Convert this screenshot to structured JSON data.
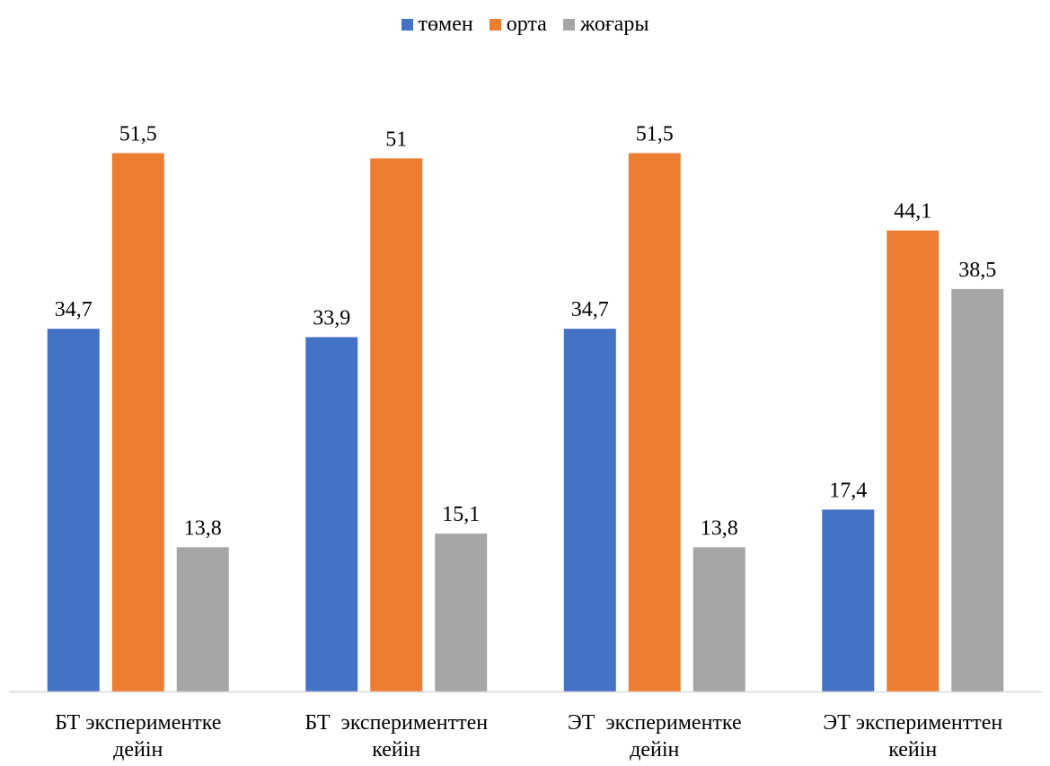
{
  "chart_data": {
    "type": "bar",
    "title": "",
    "xlabel": "",
    "ylabel": "",
    "ylim": [
      0,
      60
    ],
    "grid": false,
    "legend_position": "top",
    "categories": [
      [
        "БТ экспериментке",
        "дейін"
      ],
      [
        "БТ  эксперименттен",
        "кейін"
      ],
      [
        "ЭТ  экспериментке",
        "дейін"
      ],
      [
        "ЭТ эксперименттен",
        "кейін"
      ]
    ],
    "series": [
      {
        "name": "төмен",
        "color": "#4472C4",
        "values": [
          34.7,
          33.9,
          34.7,
          17.4
        ],
        "labels": [
          "34,7",
          "33,9",
          "34,7",
          "17,4"
        ]
      },
      {
        "name": "орта",
        "color": "#ED7D31",
        "values": [
          51.5,
          51,
          51.5,
          44.1
        ],
        "labels": [
          "51,5",
          "51",
          "51,5",
          "44,1"
        ]
      },
      {
        "name": "жоғары",
        "color": "#A5A5A5",
        "values": [
          13.8,
          15.1,
          13.8,
          38.5
        ],
        "labels": [
          "13,8",
          "15,1",
          "13,8",
          "38,5"
        ]
      }
    ]
  }
}
